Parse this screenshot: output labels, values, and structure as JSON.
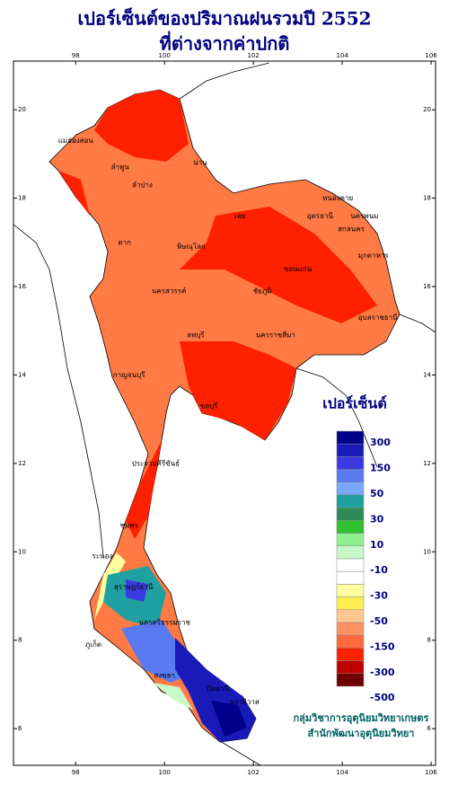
{
  "title": {
    "line1": "เปอร์เซ็นต์ของปริมาณฝนรวมปี 2552",
    "line2": "ที่ต่างจากค่าปกติ"
  },
  "map": {
    "xlim": [
      96.6,
      106.1
    ],
    "ylim": [
      5.17,
      21.1
    ],
    "xticks": [
      98,
      100,
      102,
      104,
      106
    ],
    "yticks": [
      6,
      8,
      10,
      12,
      14,
      16,
      18,
      20
    ],
    "provinces": [
      {
        "label": "แม่ฮ่องสอน",
        "x": 98.0,
        "y": 19.3
      },
      {
        "label": "ลำพูน",
        "x": 99.0,
        "y": 18.7
      },
      {
        "label": "ลำปาง",
        "x": 99.5,
        "y": 18.3
      },
      {
        "label": "น่าน",
        "x": 100.8,
        "y": 18.8
      },
      {
        "label": "หนองคาย",
        "x": 103.9,
        "y": 18.0
      },
      {
        "label": "อุดรธานี",
        "x": 103.5,
        "y": 17.6
      },
      {
        "label": "นครพนม",
        "x": 104.5,
        "y": 17.6
      },
      {
        "label": "สกลนคร",
        "x": 104.2,
        "y": 17.3
      },
      {
        "label": "เลย",
        "x": 101.7,
        "y": 17.6
      },
      {
        "label": "ตาก",
        "x": 99.1,
        "y": 17.0
      },
      {
        "label": "พิษณุโลก",
        "x": 100.6,
        "y": 16.9
      },
      {
        "label": "มุกดาหาร",
        "x": 104.7,
        "y": 16.7
      },
      {
        "label": "ขอนแก่น",
        "x": 103.0,
        "y": 16.4
      },
      {
        "label": "ชัยภูมิ",
        "x": 102.2,
        "y": 15.9
      },
      {
        "label": "นครสวรรค์",
        "x": 100.1,
        "y": 15.9
      },
      {
        "label": "อุบลราชธานี",
        "x": 104.8,
        "y": 15.3
      },
      {
        "label": "นครราชสีมา",
        "x": 102.5,
        "y": 14.9
      },
      {
        "label": "ลพบุรี",
        "x": 100.7,
        "y": 14.9
      },
      {
        "label": "กาญจนบุรี",
        "x": 99.2,
        "y": 14.0
      },
      {
        "label": "ชลบุรี",
        "x": 101.0,
        "y": 13.3
      },
      {
        "label": "ประจวบคีรีขันธ์",
        "x": 99.8,
        "y": 12.0
      },
      {
        "label": "ระนอง",
        "x": 98.6,
        "y": 9.9
      },
      {
        "label": "ชุมพร",
        "x": 99.2,
        "y": 10.6
      },
      {
        "label": "สุราษฎร์ธานี",
        "x": 99.3,
        "y": 9.2
      },
      {
        "label": "นครศรีธรรมราช",
        "x": 100.0,
        "y": 8.4
      },
      {
        "label": "ภูเก็ต",
        "x": 98.4,
        "y": 7.9
      },
      {
        "label": "สงขลา",
        "x": 100.0,
        "y": 7.2
      },
      {
        "label": "ปัตตานี",
        "x": 101.2,
        "y": 6.9
      },
      {
        "label": "นราธิวาส",
        "x": 101.8,
        "y": 6.6
      }
    ]
  },
  "legend": {
    "title": "เปอร์เซ็นต์",
    "colors": [
      "#00008b",
      "#1a1ab8",
      "#3a3ae0",
      "#5a7af0",
      "#7aa8f8",
      "#20a0a0",
      "#2e8b57",
      "#30c030",
      "#90f090",
      "#c8f8c8",
      "#ffffff",
      "#ffffff",
      "#ffffa0",
      "#ffee50",
      "#ffc890",
      "#ff9060",
      "#ff6a3c",
      "#ff2000",
      "#c00000",
      "#700000"
    ],
    "labels": [
      300,
      150,
      50,
      30,
      10,
      -10,
      -30,
      -50,
      -150,
      -300,
      -500
    ]
  },
  "credits": {
    "line1": "กลุ่มวิชาการอุตุนิยมวิทยาเกษตร",
    "line2": "สำนักพัฒนาอุตุนิยมวิทยา"
  }
}
